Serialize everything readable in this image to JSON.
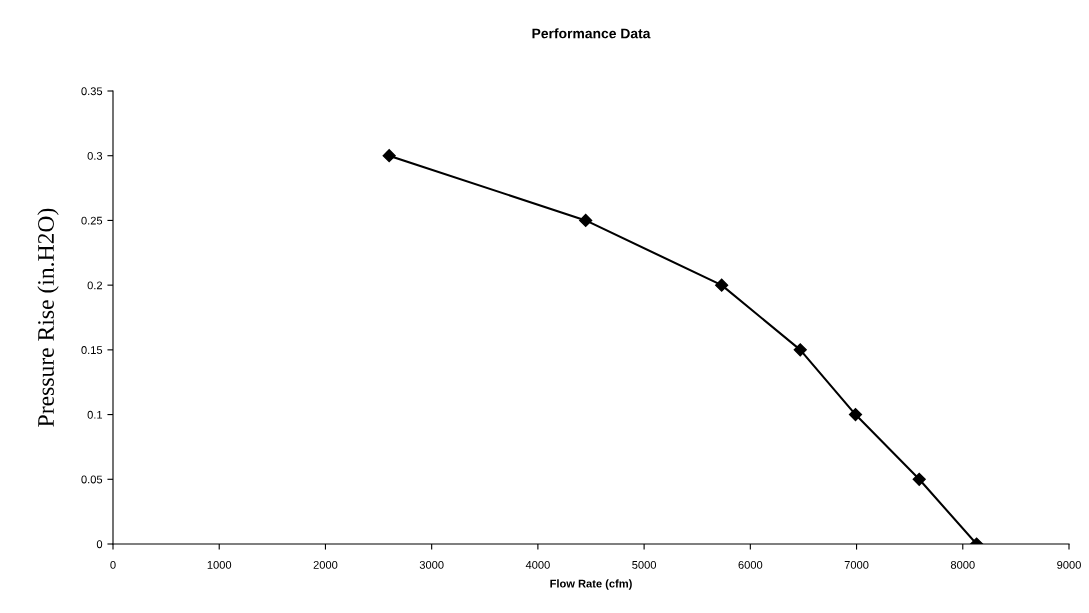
{
  "chart_data": {
    "type": "line",
    "title": "Performance Data",
    "xlabel": "Flow Rate (cfm)",
    "ylabel": "Pressure Rise (in.H2O)",
    "x": [
      2600,
      4450,
      5730,
      6470,
      6990,
      7590,
      8130
    ],
    "series": [
      {
        "color": "#000000",
        "values": [
          0.3,
          0.25,
          0.2,
          0.15,
          0.1,
          0.05,
          0
        ]
      }
    ],
    "xlim": [
      0,
      9000
    ],
    "xticks": [
      0,
      1000,
      2000,
      3000,
      4000,
      5000,
      6000,
      7000,
      8000,
      9000
    ],
    "ylim": [
      0,
      0.35
    ],
    "yticks": [
      0,
      0.05,
      0.1,
      0.15,
      0.2,
      0.25,
      0.3,
      0.35
    ],
    "grid": false,
    "legend": false,
    "marker": "diamond",
    "line_style": "solid"
  }
}
